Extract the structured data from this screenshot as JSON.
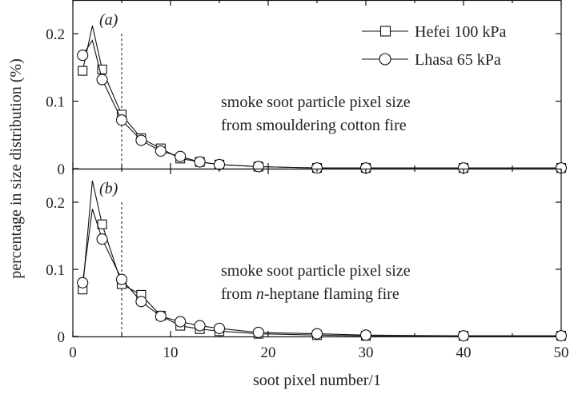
{
  "chart_data": [
    {
      "type": "line",
      "panel_label": "(a)",
      "xlabel": "soot pixel number/1",
      "ylabel": "percentage in size distribution (%)",
      "xlim": [
        0,
        50
      ],
      "ylim": [
        0,
        0.25
      ],
      "xticks": [
        0,
        10,
        20,
        30,
        40,
        50
      ],
      "yticks": [
        0,
        0.1,
        0.2
      ],
      "ytick_labels": [
        "0",
        "0.1",
        "0.2"
      ],
      "show_x_tick_labels": false,
      "vline_x": 5,
      "annotation": [
        "smoke soot particle pixel size",
        "from smouldering cotton fire"
      ],
      "legend_position": "top-right",
      "series": [
        {
          "name": "Hefei 100 kPa",
          "marker": "square",
          "line_x": [
            1,
            2,
            3,
            5,
            7,
            9,
            11,
            13,
            15,
            19,
            25,
            30,
            40,
            50
          ],
          "line_y": [
            0.145,
            0.212,
            0.147,
            0.08,
            0.045,
            0.03,
            0.015,
            0.01,
            0.006,
            0.003,
            0.001,
            0.001,
            0.001,
            0.001
          ],
          "marker_x": [
            1,
            3,
            5,
            7,
            9,
            11,
            13,
            15,
            19,
            25,
            30,
            40,
            50
          ],
          "marker_y": [
            0.145,
            0.147,
            0.08,
            0.045,
            0.03,
            0.015,
            0.01,
            0.006,
            0.003,
            0.001,
            0.001,
            0.001,
            0.001
          ]
        },
        {
          "name": "Lhasa 65 kPa",
          "marker": "circle",
          "line_x": [
            1,
            2,
            3,
            5,
            7,
            9,
            11,
            13,
            15,
            19,
            25,
            30,
            40,
            50
          ],
          "line_y": [
            0.168,
            0.19,
            0.132,
            0.072,
            0.042,
            0.026,
            0.018,
            0.01,
            0.006,
            0.003,
            0.001,
            0.001,
            0.001,
            0.001
          ],
          "marker_x": [
            1,
            3,
            5,
            7,
            9,
            11,
            13,
            15,
            19,
            25,
            30,
            40,
            50
          ],
          "marker_y": [
            0.168,
            0.132,
            0.072,
            0.042,
            0.026,
            0.018,
            0.01,
            0.006,
            0.003,
            0.001,
            0.001,
            0.001,
            0.001
          ]
        }
      ]
    },
    {
      "type": "line",
      "panel_label": "(b)",
      "xlabel": "soot pixel number/1",
      "ylabel": "percentage in size distribution (%)",
      "xlim": [
        0,
        50
      ],
      "ylim": [
        0,
        0.25
      ],
      "xticks": [
        0,
        10,
        20,
        30,
        40,
        50
      ],
      "yticks": [
        0,
        0.1,
        0.2
      ],
      "ytick_labels": [
        "0",
        "0.1",
        "0.2"
      ],
      "show_x_tick_labels": true,
      "vline_x": 5,
      "annotation": [
        "smoke soot particle pixel size",
        "from n-heptane flaming fire"
      ],
      "series": [
        {
          "name": "Hefei 100 kPa",
          "marker": "square",
          "line_x": [
            1,
            2,
            3,
            5,
            7,
            9,
            11,
            13,
            15,
            19,
            25,
            30,
            40,
            50
          ],
          "line_y": [
            0.07,
            0.232,
            0.167,
            0.078,
            0.062,
            0.031,
            0.016,
            0.011,
            0.008,
            0.004,
            0.002,
            0.001,
            0.001,
            0.001
          ],
          "marker_x": [
            1,
            3,
            5,
            7,
            9,
            11,
            13,
            15,
            19,
            25,
            30,
            40,
            50
          ],
          "marker_y": [
            0.07,
            0.167,
            0.078,
            0.062,
            0.031,
            0.016,
            0.011,
            0.008,
            0.004,
            0.002,
            0.001,
            0.001,
            0.001
          ]
        },
        {
          "name": "Lhasa 65 kPa",
          "marker": "circle",
          "line_x": [
            1,
            2,
            3,
            5,
            7,
            9,
            11,
            13,
            15,
            19,
            25,
            30,
            40,
            50
          ],
          "line_y": [
            0.08,
            0.19,
            0.145,
            0.085,
            0.052,
            0.03,
            0.022,
            0.016,
            0.012,
            0.006,
            0.004,
            0.002,
            0.001,
            0.001
          ],
          "marker_x": [
            1,
            3,
            5,
            7,
            9,
            11,
            13,
            15,
            19,
            25,
            30,
            40,
            50
          ],
          "marker_y": [
            0.08,
            0.145,
            0.085,
            0.052,
            0.03,
            0.022,
            0.016,
            0.012,
            0.006,
            0.004,
            0.002,
            0.001,
            0.001
          ]
        }
      ]
    }
  ]
}
